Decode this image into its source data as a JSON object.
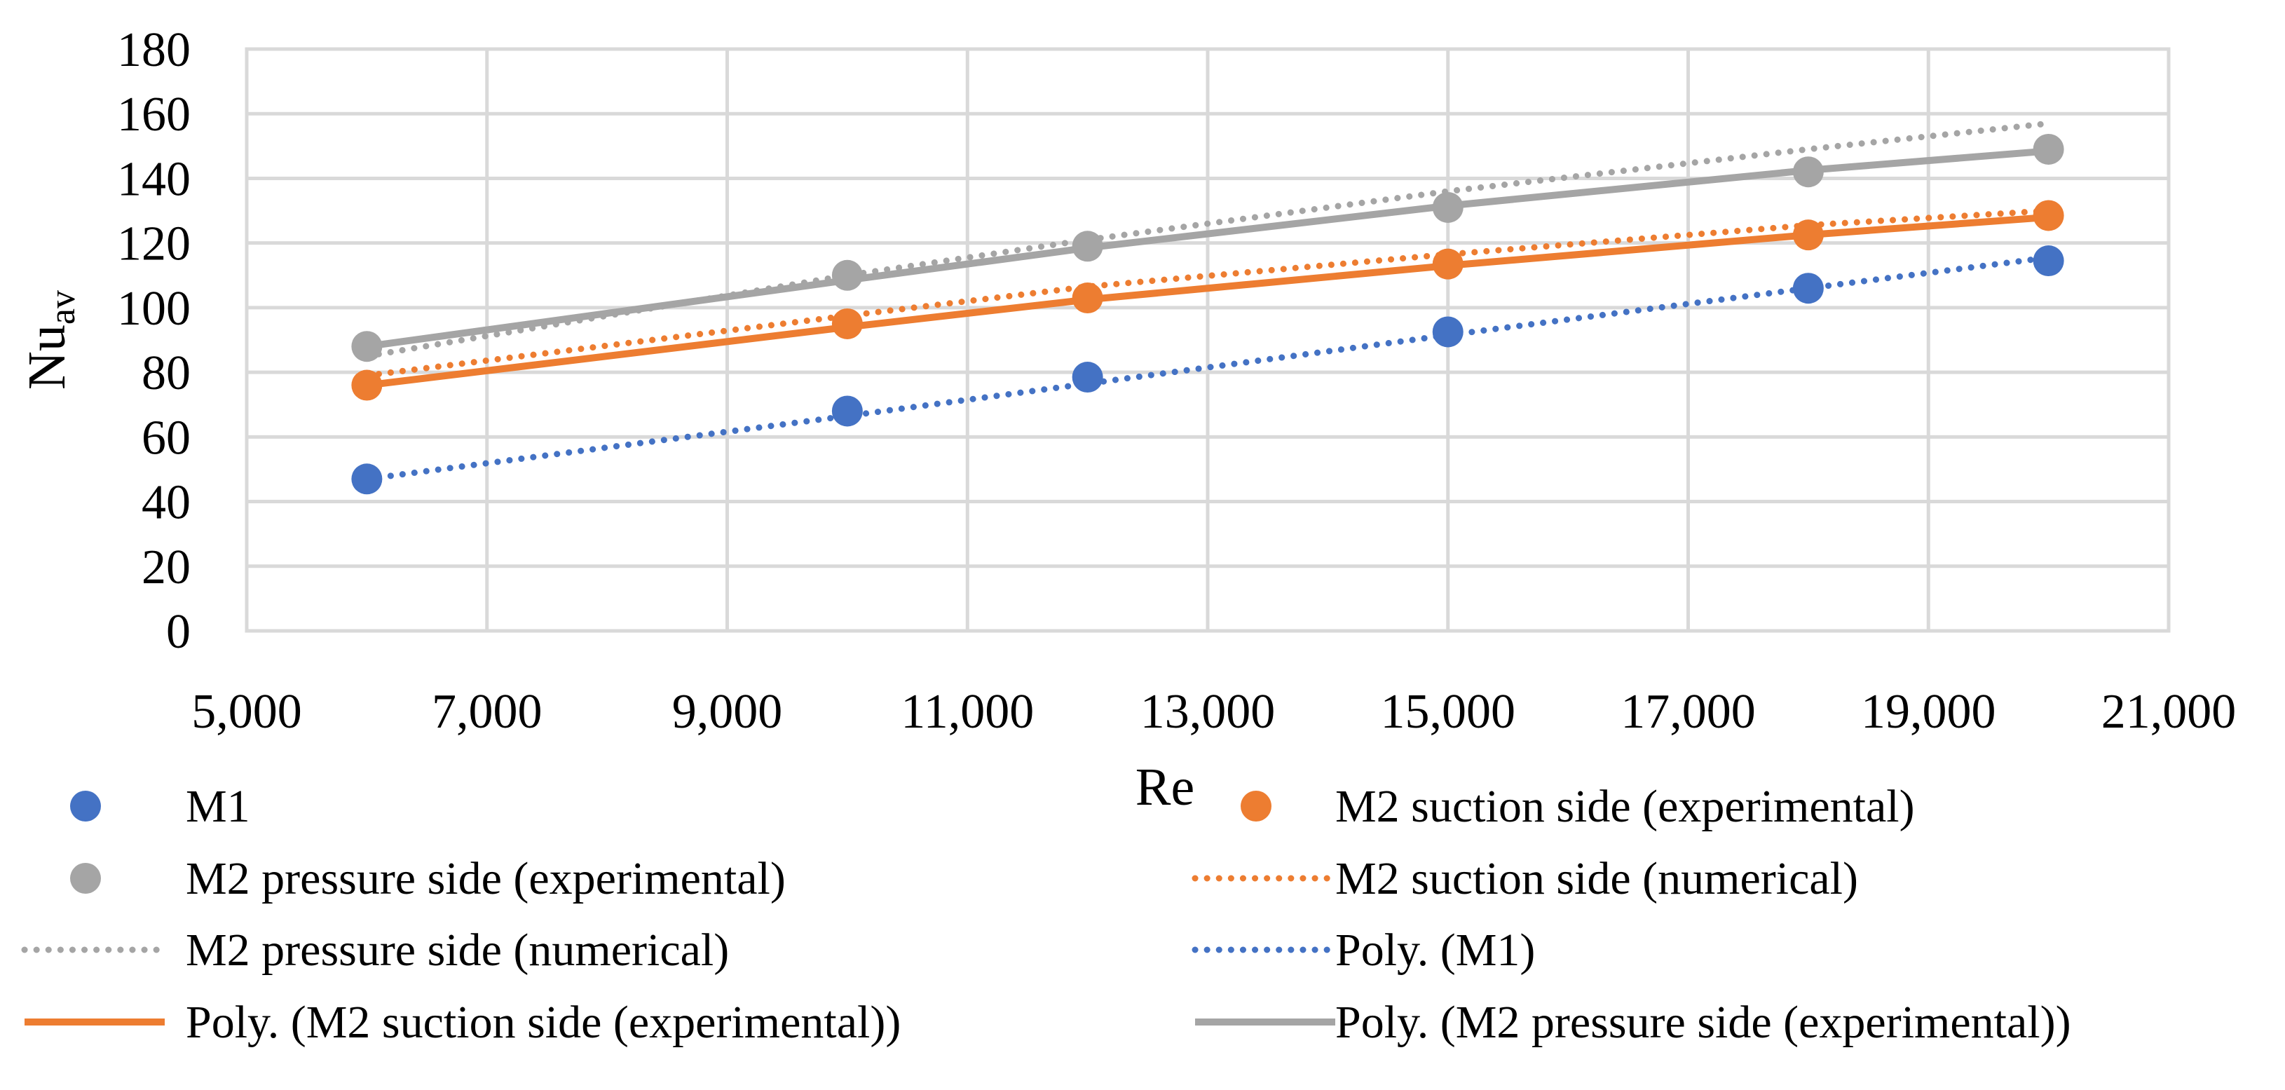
{
  "chart_data": {
    "type": "scatter",
    "title": "",
    "xlabel": "Re",
    "ylabel": "Nu",
    "ylabel_subscript": "av",
    "xlim": [
      5000,
      21000
    ],
    "ylim": [
      0,
      180
    ],
    "x_ticks": [
      5000,
      7000,
      9000,
      11000,
      13000,
      15000,
      17000,
      19000,
      21000
    ],
    "x_tick_labels": [
      "5,000",
      "7,000",
      "9,000",
      "11,000",
      "13,000",
      "15,000",
      "17,000",
      "19,000",
      "21,000"
    ],
    "y_ticks": [
      0,
      20,
      40,
      60,
      80,
      100,
      120,
      140,
      160,
      180
    ],
    "y_tick_labels": [
      "0",
      "20",
      "40",
      "60",
      "80",
      "100",
      "120",
      "140",
      "160",
      "180"
    ],
    "grid": true,
    "legend_position": "bottom",
    "series": [
      {
        "name": "M1",
        "kind": "markers",
        "color": "#4472c4",
        "x": [
          6000,
          10000,
          12000,
          15000,
          18000,
          20000
        ],
        "y": [
          47,
          68,
          78.5,
          92.5,
          106,
          114.5
        ]
      },
      {
        "name": "M2 suction side (experimental)",
        "kind": "markers",
        "color": "#ed7d31",
        "x": [
          6000,
          10000,
          12000,
          15000,
          18000,
          20000
        ],
        "y": [
          76,
          95,
          103,
          113.5,
          122.5,
          128.5
        ]
      },
      {
        "name": "M2 pressure side (experimental)",
        "kind": "markers",
        "color": "#a5a5a5",
        "x": [
          6000,
          10000,
          12000,
          15000,
          18000,
          20000
        ],
        "y": [
          88,
          110,
          119,
          131,
          142,
          149
        ]
      },
      {
        "name": "M2 suction side (numerical)",
        "kind": "dotted",
        "color": "#ed7d31",
        "x": [
          6000,
          10000,
          12000,
          15000,
          18000,
          20000
        ],
        "y": [
          79,
          97.5,
          106.5,
          116.5,
          125.5,
          130
        ]
      },
      {
        "name": "M2 pressure side (numerical)",
        "kind": "dotted",
        "color": "#a5a5a5",
        "x": [
          6000,
          10000,
          12000,
          15000,
          18000,
          20000
        ],
        "y": [
          85,
          110,
          121,
          136,
          149,
          157
        ]
      },
      {
        "name": "Poly. (M1)",
        "kind": "dotted",
        "color": "#4472c4",
        "x": [
          6000,
          10000,
          12000,
          15000,
          18000,
          20000
        ],
        "y": [
          47,
          66.5,
          76.5,
          91.5,
          106,
          115.5
        ]
      },
      {
        "name": "Poly. (M2 suction side (experimental))",
        "kind": "solid",
        "color": "#ed7d31",
        "x": [
          6000,
          10000,
          12000,
          15000,
          18000,
          20000
        ],
        "y": [
          76,
          94,
          102.5,
          113,
          122.5,
          128
        ]
      },
      {
        "name": "Poly. (M2 pressure side (experimental))",
        "kind": "solid",
        "color": "#a5a5a5",
        "x": [
          6000,
          10000,
          12000,
          15000,
          18000,
          20000
        ],
        "y": [
          88,
          108.5,
          118.5,
          131.5,
          142.5,
          148.5
        ]
      }
    ]
  },
  "legend": {
    "items": [
      {
        "label": "M1",
        "series": 0,
        "kind": "markers",
        "color": "#4472c4"
      },
      {
        "label": "M2 suction side (experimental)",
        "series": 1,
        "kind": "markers",
        "color": "#ed7d31"
      },
      {
        "label": "M2 pressure side (experimental)",
        "series": 2,
        "kind": "markers",
        "color": "#a5a5a5"
      },
      {
        "label": "M2 suction side (numerical)",
        "series": 3,
        "kind": "dotted",
        "color": "#ed7d31"
      },
      {
        "label": "M2 pressure side (numerical)",
        "series": 4,
        "kind": "dotted",
        "color": "#a5a5a5"
      },
      {
        "label": "Poly. (M1)",
        "series": 5,
        "kind": "dotted",
        "color": "#4472c4"
      },
      {
        "label": "Poly. (M2 suction side (experimental))",
        "series": 6,
        "kind": "solid",
        "color": "#ed7d31"
      },
      {
        "label": "Poly. (M2 pressure side (experimental))",
        "series": 7,
        "kind": "solid",
        "color": "#a5a5a5"
      }
    ]
  }
}
